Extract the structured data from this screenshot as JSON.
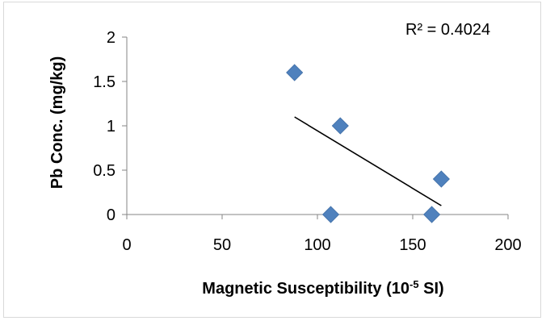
{
  "chart_data": {
    "type": "scatter",
    "xlabel": "Magnetic Susceptibility (10",
    "xlabel_sup": "-5",
    "xlabel_tail": " SI)",
    "ylabel": "Pb Conc. (mg/kg)",
    "xlim": [
      0,
      200
    ],
    "ylim": [
      0,
      2
    ],
    "xticks": [
      0,
      50,
      100,
      150,
      200
    ],
    "yticks": [
      0,
      0.5,
      1,
      1.5,
      2
    ],
    "xtick_labels": [
      "0",
      "50",
      "100",
      "150",
      "200"
    ],
    "ytick_labels": [
      "0",
      "0.5",
      "1",
      "1.5",
      "2"
    ],
    "grid": false,
    "series": [
      {
        "marker": "diamond",
        "color": "#4f81bd",
        "points": [
          {
            "x": 88,
            "y": 1.6
          },
          {
            "x": 112,
            "y": 1.0
          },
          {
            "x": 107,
            "y": 0.0
          },
          {
            "x": 160,
            "y": 0.0
          },
          {
            "x": 165,
            "y": 0.4
          }
        ]
      }
    ],
    "trendline": {
      "type": "linear",
      "color": "#000000",
      "x_range": [
        88,
        165
      ],
      "y_range": [
        1.1,
        0.1
      ],
      "r_squared_label": "R² = 0.4024"
    }
  }
}
